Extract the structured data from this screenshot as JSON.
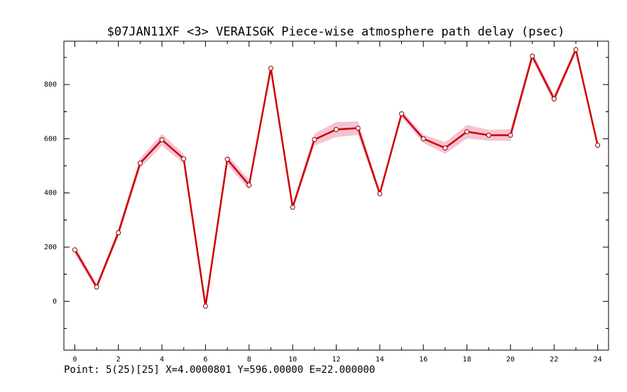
{
  "chart_data": {
    "type": "line",
    "title": "$07JAN11XF <3>  VERAISGK  Piece-wise atmosphere path delay (psec)",
    "x": [
      0,
      1,
      2,
      3,
      4,
      5,
      6,
      7,
      8,
      9,
      10,
      11,
      12,
      13,
      14,
      15,
      16,
      17,
      18,
      19,
      20,
      21,
      22,
      23,
      24
    ],
    "values": [
      190,
      53,
      253,
      510,
      596,
      526,
      -18,
      524,
      429,
      860,
      347,
      597,
      634,
      639,
      397,
      692,
      600,
      566,
      626,
      613,
      613,
      905,
      747,
      929,
      576
    ],
    "errors": [
      15,
      12,
      15,
      18,
      22,
      18,
      12,
      18,
      18,
      12,
      12,
      22,
      28,
      25,
      12,
      12,
      15,
      22,
      25,
      20,
      22,
      15,
      15,
      12,
      12
    ],
    "color": "#cc0000",
    "band_color": "#f7c3d2",
    "xlim": [
      -0.5,
      24.5
    ],
    "ylim": [
      -180,
      960
    ],
    "xticks": [
      0,
      2,
      4,
      6,
      8,
      10,
      12,
      14,
      16,
      18,
      20,
      22,
      24
    ],
    "yticks": [
      0,
      200,
      400,
      600,
      800
    ],
    "status": "Point: 5(25)[25] X=4.0000801 Y=596.00000 E=22.000000"
  }
}
